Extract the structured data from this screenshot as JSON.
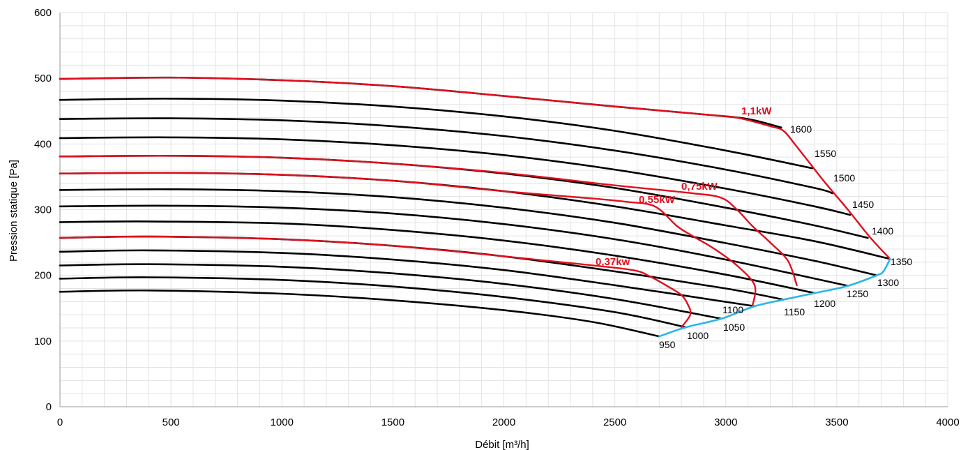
{
  "chart_data": {
    "type": "line",
    "title": "",
    "xlabel": "Débit [m³/h]",
    "ylabel": "Pression statique [Pa]",
    "xlim": [
      0,
      4000
    ],
    "ylim": [
      0,
      600
    ],
    "x_ticks": [
      0,
      500,
      1000,
      1500,
      2000,
      2500,
      3000,
      3500,
      4000
    ],
    "y_ticks": [
      0,
      100,
      200,
      300,
      400,
      500,
      600
    ],
    "grid": true,
    "legend": "none",
    "colors": {
      "speed_curve": "#000000",
      "power_curve": "#e00f1e",
      "limit_curve": "#29b6e8",
      "grid": "#e3e3e3"
    },
    "series": [
      {
        "label": "950",
        "points": [
          [
            0,
            175
          ],
          [
            400,
            177
          ],
          [
            1000,
            172
          ],
          [
            1500,
            162
          ],
          [
            2000,
            147
          ],
          [
            2400,
            129
          ],
          [
            2700,
            107
          ]
        ]
      },
      {
        "label": "1000",
        "points": [
          [
            0,
            195
          ],
          [
            400,
            197
          ],
          [
            1000,
            193
          ],
          [
            1500,
            183
          ],
          [
            2000,
            167
          ],
          [
            2500,
            144
          ],
          [
            2820,
            121
          ]
        ]
      },
      {
        "label": "1050",
        "points": [
          [
            0,
            215
          ],
          [
            400,
            217
          ],
          [
            1000,
            213
          ],
          [
            1500,
            203
          ],
          [
            2000,
            187
          ],
          [
            2500,
            164
          ],
          [
            2980,
            134
          ]
        ]
      },
      {
        "label": "1100",
        "points": [
          [
            0,
            236
          ],
          [
            400,
            238
          ],
          [
            1000,
            234
          ],
          [
            1500,
            224
          ],
          [
            2000,
            208
          ],
          [
            2500,
            185
          ],
          [
            3130,
            153
          ]
        ]
      },
      {
        "label": "1150",
        "points": [
          [
            0,
            257
          ],
          [
            400,
            259
          ],
          [
            1000,
            255
          ],
          [
            1500,
            245
          ],
          [
            2000,
            229
          ],
          [
            2500,
            206
          ],
          [
            3000,
            180
          ],
          [
            3260,
            163
          ]
        ]
      },
      {
        "label": "1200",
        "points": [
          [
            0,
            281
          ],
          [
            400,
            282
          ],
          [
            1000,
            279
          ],
          [
            1500,
            269
          ],
          [
            2000,
            253
          ],
          [
            2500,
            230
          ],
          [
            3000,
            201
          ],
          [
            3400,
            173
          ]
        ]
      },
      {
        "label": "1250",
        "points": [
          [
            0,
            305
          ],
          [
            500,
            306
          ],
          [
            1000,
            303
          ],
          [
            1500,
            294
          ],
          [
            2000,
            278
          ],
          [
            2500,
            255
          ],
          [
            3000,
            224
          ],
          [
            3550,
            184
          ]
        ]
      },
      {
        "label": "1300",
        "points": [
          [
            0,
            330
          ],
          [
            500,
            331
          ],
          [
            1000,
            328
          ],
          [
            1500,
            319
          ],
          [
            2000,
            303
          ],
          [
            2500,
            280
          ],
          [
            3000,
            249
          ],
          [
            3400,
            222
          ],
          [
            3680,
            200
          ]
        ]
      },
      {
        "label": "1350",
        "points": [
          [
            0,
            355
          ],
          [
            500,
            356
          ],
          [
            1000,
            353
          ],
          [
            1500,
            344
          ],
          [
            2000,
            328
          ],
          [
            2500,
            305
          ],
          [
            3000,
            276
          ],
          [
            3400,
            252
          ],
          [
            3740,
            225
          ]
        ]
      },
      {
        "label": "1400",
        "points": [
          [
            0,
            381
          ],
          [
            500,
            382
          ],
          [
            1000,
            379
          ],
          [
            1500,
            370
          ],
          [
            2000,
            355
          ],
          [
            2500,
            333
          ],
          [
            3000,
            303
          ],
          [
            3400,
            276
          ],
          [
            3640,
            257
          ]
        ]
      },
      {
        "label": "1450",
        "points": [
          [
            0,
            409
          ],
          [
            500,
            410
          ],
          [
            1000,
            407
          ],
          [
            1500,
            398
          ],
          [
            2000,
            383
          ],
          [
            2500,
            361
          ],
          [
            3000,
            332
          ],
          [
            3400,
            305
          ],
          [
            3560,
            292
          ]
        ]
      },
      {
        "label": "1500",
        "points": [
          [
            0,
            438
          ],
          [
            500,
            439
          ],
          [
            1000,
            436
          ],
          [
            1500,
            427
          ],
          [
            2000,
            412
          ],
          [
            2500,
            390
          ],
          [
            3000,
            361
          ],
          [
            3400,
            333
          ],
          [
            3480,
            325
          ]
        ]
      },
      {
        "label": "1550",
        "points": [
          [
            0,
            467
          ],
          [
            500,
            469
          ],
          [
            1000,
            466
          ],
          [
            1500,
            457
          ],
          [
            2000,
            442
          ],
          [
            2500,
            420
          ],
          [
            3000,
            390
          ],
          [
            3390,
            363
          ]
        ]
      },
      {
        "label": "1600",
        "points": [
          [
            0,
            499
          ],
          [
            500,
            501
          ],
          [
            1000,
            497
          ],
          [
            1500,
            488
          ],
          [
            2000,
            473
          ],
          [
            2500,
            457
          ],
          [
            2900,
            445
          ],
          [
            3100,
            438
          ],
          [
            3250,
            425
          ]
        ]
      }
    ],
    "power_curves": [
      {
        "label": "0,37kw",
        "points": [
          [
            0,
            257
          ],
          [
            400,
            259
          ],
          [
            1000,
            255
          ],
          [
            1500,
            245
          ],
          [
            2000,
            229
          ],
          [
            2350,
            217
          ],
          [
            2580,
            208
          ],
          [
            2660,
            198
          ],
          [
            2740,
            183
          ],
          [
            2800,
            170
          ],
          [
            2830,
            155
          ],
          [
            2840,
            140
          ],
          [
            2800,
            121
          ]
        ]
      },
      {
        "label": "0,55kW",
        "points": [
          [
            0,
            355
          ],
          [
            500,
            356
          ],
          [
            1000,
            353
          ],
          [
            1500,
            344
          ],
          [
            2000,
            328
          ],
          [
            2400,
            317
          ],
          [
            2550,
            312
          ],
          [
            2680,
            305
          ],
          [
            2780,
            275
          ],
          [
            2850,
            260
          ],
          [
            2950,
            240
          ],
          [
            3050,
            215
          ],
          [
            3130,
            185
          ],
          [
            3120,
            153
          ]
        ]
      },
      {
        "label": "0,75kW",
        "points": [
          [
            0,
            381
          ],
          [
            500,
            382
          ],
          [
            1000,
            379
          ],
          [
            1500,
            370
          ],
          [
            2000,
            356
          ],
          [
            2500,
            337
          ],
          [
            2850,
            325
          ],
          [
            2980,
            318
          ],
          [
            3050,
            300
          ],
          [
            3120,
            275
          ],
          [
            3200,
            250
          ],
          [
            3280,
            222
          ],
          [
            3320,
            185
          ]
        ]
      },
      {
        "label": "1,1kW",
        "points": [
          [
            0,
            499
          ],
          [
            500,
            501
          ],
          [
            1000,
            497
          ],
          [
            1500,
            488
          ],
          [
            2000,
            473
          ],
          [
            2500,
            457
          ],
          [
            2900,
            445
          ],
          [
            3050,
            440
          ],
          [
            3200,
            427
          ],
          [
            3260,
            420
          ],
          [
            3310,
            400
          ],
          [
            3380,
            370
          ],
          [
            3450,
            340
          ],
          [
            3550,
            300
          ],
          [
            3650,
            258
          ],
          [
            3740,
            225
          ]
        ]
      }
    ],
    "limit_curve": {
      "points": [
        [
          2700,
          107
        ],
        [
          2820,
          121
        ],
        [
          2980,
          134
        ],
        [
          3130,
          153
        ],
        [
          3260,
          163
        ],
        [
          3400,
          173
        ],
        [
          3550,
          184
        ],
        [
          3680,
          200
        ],
        [
          3710,
          206
        ],
        [
          3740,
          225
        ]
      ]
    },
    "annotations": {
      "speed_labels": [
        "950",
        "1000",
        "1050",
        "1100",
        "1150",
        "1200",
        "1250",
        "1300",
        "1350",
        "1400",
        "1450",
        "1500",
        "1550",
        "1600"
      ],
      "power_labels": [
        "0,37kw",
        "0,55kW",
        "0,75kW",
        "1,1kW"
      ]
    }
  }
}
